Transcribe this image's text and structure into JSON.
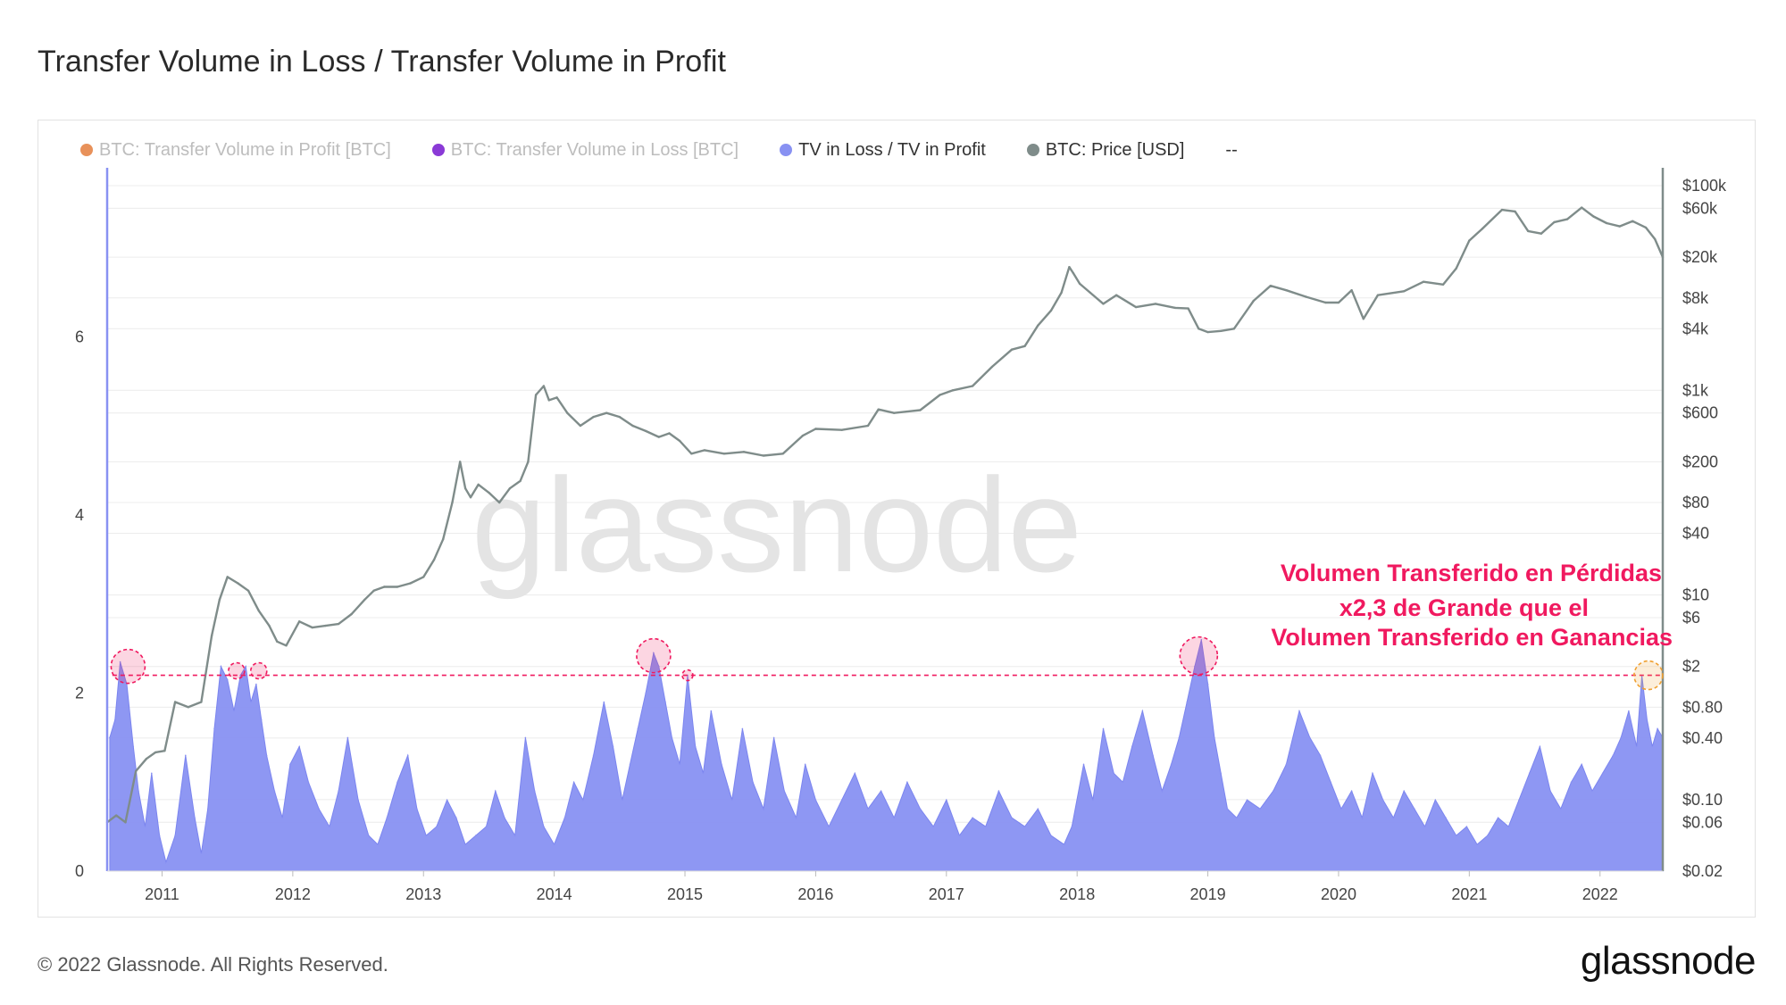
{
  "page": {
    "title": "Transfer Volume in Loss / Transfer Volume in Profit",
    "copyright": "© 2022 Glassnode. All Rights Reserved.",
    "logo": "glassnode",
    "watermark": "glassnode"
  },
  "legend": [
    {
      "label": "BTC: Transfer Volume in Profit [BTC]",
      "color": "#e8915a",
      "muted": true
    },
    {
      "label": "BTC: Transfer Volume in Loss [BTC]",
      "color": "#8a3ad6",
      "muted": true
    },
    {
      "label": "TV in Loss / TV in Profit",
      "color": "#8891f2",
      "muted": false
    },
    {
      "label": "BTC: Price [USD]",
      "color": "#7f8c8a",
      "muted": false
    },
    {
      "label": "--",
      "color": "",
      "muted": false
    }
  ],
  "annotation": {
    "lines": [
      "Volumen Transferido en Pérdidas",
      "x2,3 de Grande que el",
      "Volumen Transferido en Ganancias"
    ],
    "color": "#f0195f",
    "threshold": 2.2
  },
  "chart_data": {
    "type": "area",
    "title": "Transfer Volume in Loss / Transfer Volume in Profit",
    "x_range": [
      2010.58,
      2022.48
    ],
    "x_ticks": [
      "2011",
      "2012",
      "2013",
      "2014",
      "2015",
      "2016",
      "2017",
      "2018",
      "2019",
      "2020",
      "2021",
      "2022"
    ],
    "left_axis": {
      "ticks": [
        "0",
        "2",
        "4",
        "6"
      ],
      "range": [
        0,
        7.9
      ]
    },
    "right_axis": {
      "scale": "log",
      "range": [
        0.02,
        100000
      ],
      "ticks": [
        "$100k",
        "$60k",
        "$20k",
        "$8k",
        "$4k",
        "$1k",
        "$600",
        "$200",
        "$80",
        "$40",
        "$10",
        "$6",
        "$2",
        "$0.80",
        "$0.40",
        "$0.10",
        "$0.06",
        "$0.02"
      ]
    },
    "series": [
      {
        "name": "TV in Loss / TV in Profit",
        "color": "#8891f2",
        "axis": "left",
        "x": [
          2010.6,
          2010.64,
          2010.68,
          2010.73,
          2010.78,
          2010.82,
          2010.87,
          2010.92,
          2010.98,
          2011.03,
          2011.1,
          2011.18,
          2011.25,
          2011.3,
          2011.35,
          2011.4,
          2011.45,
          2011.5,
          2011.55,
          2011.6,
          2011.64,
          2011.68,
          2011.72,
          2011.76,
          2011.8,
          2011.86,
          2011.92,
          2011.98,
          2012.05,
          2012.12,
          2012.2,
          2012.28,
          2012.35,
          2012.42,
          2012.5,
          2012.58,
          2012.65,
          2012.72,
          2012.8,
          2012.88,
          2012.95,
          2013.02,
          2013.1,
          2013.18,
          2013.25,
          2013.32,
          2013.4,
          2013.48,
          2013.55,
          2013.62,
          2013.7,
          2013.78,
          2013.85,
          2013.92,
          2014.0,
          2014.08,
          2014.15,
          2014.22,
          2014.3,
          2014.38,
          2014.45,
          2014.52,
          2014.58,
          2014.64,
          2014.7,
          2014.76,
          2014.8,
          2014.85,
          2014.9,
          2014.96,
          2015.02,
          2015.08,
          2015.14,
          2015.2,
          2015.28,
          2015.36,
          2015.44,
          2015.52,
          2015.6,
          2015.68,
          2015.76,
          2015.85,
          2015.92,
          2016.0,
          2016.1,
          2016.2,
          2016.3,
          2016.4,
          2016.5,
          2016.6,
          2016.7,
          2016.8,
          2016.9,
          2017.0,
          2017.1,
          2017.2,
          2017.3,
          2017.4,
          2017.5,
          2017.6,
          2017.7,
          2017.8,
          2017.9,
          2017.96,
          2018.05,
          2018.12,
          2018.2,
          2018.28,
          2018.35,
          2018.42,
          2018.5,
          2018.58,
          2018.65,
          2018.72,
          2018.78,
          2018.84,
          2018.9,
          2018.95,
          2019.0,
          2019.05,
          2019.1,
          2019.15,
          2019.22,
          2019.3,
          2019.4,
          2019.5,
          2019.6,
          2019.7,
          2019.78,
          2019.86,
          2019.94,
          2020.02,
          2020.1,
          2020.18,
          2020.26,
          2020.34,
          2020.42,
          2020.5,
          2020.58,
          2020.66,
          2020.74,
          2020.82,
          2020.9,
          2020.98,
          2021.06,
          2021.14,
          2021.22,
          2021.3,
          2021.38,
          2021.46,
          2021.54,
          2021.62,
          2021.7,
          2021.78,
          2021.86,
          2021.94,
          2022.02,
          2022.1,
          2022.16,
          2022.22,
          2022.28,
          2022.32,
          2022.36,
          2022.4,
          2022.44,
          2022.48
        ],
        "values": [
          1.5,
          1.7,
          2.35,
          2.1,
          1.4,
          0.9,
          0.5,
          1.1,
          0.4,
          0.1,
          0.4,
          1.3,
          0.6,
          0.2,
          0.7,
          1.6,
          2.3,
          2.15,
          1.8,
          2.2,
          2.3,
          1.9,
          2.1,
          1.7,
          1.3,
          0.9,
          0.6,
          1.2,
          1.4,
          1.0,
          0.7,
          0.5,
          0.9,
          1.5,
          0.8,
          0.4,
          0.3,
          0.6,
          1.0,
          1.3,
          0.7,
          0.4,
          0.5,
          0.8,
          0.6,
          0.3,
          0.4,
          0.5,
          0.9,
          0.6,
          0.4,
          1.5,
          0.9,
          0.5,
          0.3,
          0.6,
          1.0,
          0.8,
          1.3,
          1.9,
          1.4,
          0.8,
          1.2,
          1.6,
          2.0,
          2.45,
          2.3,
          1.9,
          1.5,
          1.2,
          2.2,
          1.4,
          1.1,
          1.8,
          1.2,
          0.8,
          1.6,
          1.0,
          0.7,
          1.5,
          0.9,
          0.6,
          1.2,
          0.8,
          0.5,
          0.8,
          1.1,
          0.7,
          0.9,
          0.6,
          1.0,
          0.7,
          0.5,
          0.8,
          0.4,
          0.6,
          0.5,
          0.9,
          0.6,
          0.5,
          0.7,
          0.4,
          0.3,
          0.5,
          1.2,
          0.8,
          1.6,
          1.1,
          1.0,
          1.4,
          1.8,
          1.3,
          0.9,
          1.2,
          1.5,
          1.9,
          2.3,
          2.6,
          2.1,
          1.5,
          1.1,
          0.7,
          0.6,
          0.8,
          0.7,
          0.9,
          1.2,
          1.8,
          1.5,
          1.3,
          1.0,
          0.7,
          0.9,
          0.6,
          1.1,
          0.8,
          0.6,
          0.9,
          0.7,
          0.5,
          0.8,
          0.6,
          0.4,
          0.5,
          0.3,
          0.4,
          0.6,
          0.5,
          0.8,
          1.1,
          1.4,
          0.9,
          0.7,
          1.0,
          1.2,
          0.9,
          1.1,
          1.3,
          1.5,
          1.8,
          1.4,
          2.2,
          1.7,
          1.4,
          1.6,
          1.5
        ]
      },
      {
        "name": "BTC: Price [USD]",
        "color": "#7f8c8a",
        "axis": "right",
        "x": [
          2010.58,
          2010.65,
          2010.72,
          2010.8,
          2010.88,
          2010.95,
          2011.02,
          2011.1,
          2011.2,
          2011.3,
          2011.38,
          2011.44,
          2011.5,
          2011.58,
          2011.66,
          2011.74,
          2011.82,
          2011.88,
          2011.95,
          2012.05,
          2012.15,
          2012.25,
          2012.35,
          2012.45,
          2012.55,
          2012.62,
          2012.7,
          2012.8,
          2012.9,
          2013.0,
          2013.08,
          2013.15,
          2013.22,
          2013.28,
          2013.32,
          2013.36,
          2013.42,
          2013.5,
          2013.58,
          2013.66,
          2013.74,
          2013.8,
          2013.86,
          2013.92,
          2013.96,
          2014.02,
          2014.1,
          2014.2,
          2014.3,
          2014.4,
          2014.5,
          2014.6,
          2014.7,
          2014.8,
          2014.88,
          2014.96,
          2015.05,
          2015.15,
          2015.3,
          2015.45,
          2015.6,
          2015.75,
          2015.9,
          2016.0,
          2016.2,
          2016.4,
          2016.48,
          2016.6,
          2016.8,
          2016.95,
          2017.05,
          2017.2,
          2017.35,
          2017.5,
          2017.6,
          2017.7,
          2017.8,
          2017.88,
          2017.94,
          2017.97,
          2018.02,
          2018.1,
          2018.2,
          2018.3,
          2018.45,
          2018.6,
          2018.75,
          2018.85,
          2018.93,
          2019.0,
          2019.1,
          2019.2,
          2019.35,
          2019.48,
          2019.6,
          2019.75,
          2019.9,
          2020.0,
          2020.1,
          2020.19,
          2020.3,
          2020.5,
          2020.65,
          2020.8,
          2020.9,
          2021.0,
          2021.1,
          2021.25,
          2021.35,
          2021.45,
          2021.55,
          2021.65,
          2021.75,
          2021.86,
          2021.95,
          2022.05,
          2022.15,
          2022.25,
          2022.35,
          2022.42,
          2022.48
        ],
        "values": [
          0.06,
          0.07,
          0.06,
          0.19,
          0.25,
          0.29,
          0.3,
          0.9,
          0.8,
          0.9,
          4,
          9,
          15,
          13,
          11,
          7,
          5,
          3.5,
          3.2,
          5.5,
          4.8,
          5,
          5.2,
          6.5,
          9,
          11,
          12,
          12,
          13,
          15,
          22,
          35,
          80,
          200,
          110,
          90,
          120,
          100,
          80,
          110,
          130,
          200,
          900,
          1100,
          800,
          850,
          600,
          450,
          550,
          600,
          550,
          450,
          400,
          350,
          380,
          320,
          240,
          260,
          240,
          250,
          230,
          240,
          360,
          420,
          410,
          450,
          650,
          600,
          640,
          900,
          1000,
          1100,
          1700,
          2500,
          2700,
          4300,
          6000,
          9000,
          16000,
          14000,
          11000,
          9000,
          7000,
          8500,
          6500,
          7000,
          6400,
          6300,
          4000,
          3700,
          3800,
          4000,
          7500,
          10500,
          9500,
          8200,
          7200,
          7200,
          9500,
          5000,
          8500,
          9300,
          11500,
          10800,
          15500,
          29000,
          38000,
          58000,
          56000,
          36000,
          34000,
          44000,
          47000,
          61000,
          50000,
          43000,
          40000,
          45000,
          39000,
          30000,
          20000
        ]
      }
    ]
  }
}
